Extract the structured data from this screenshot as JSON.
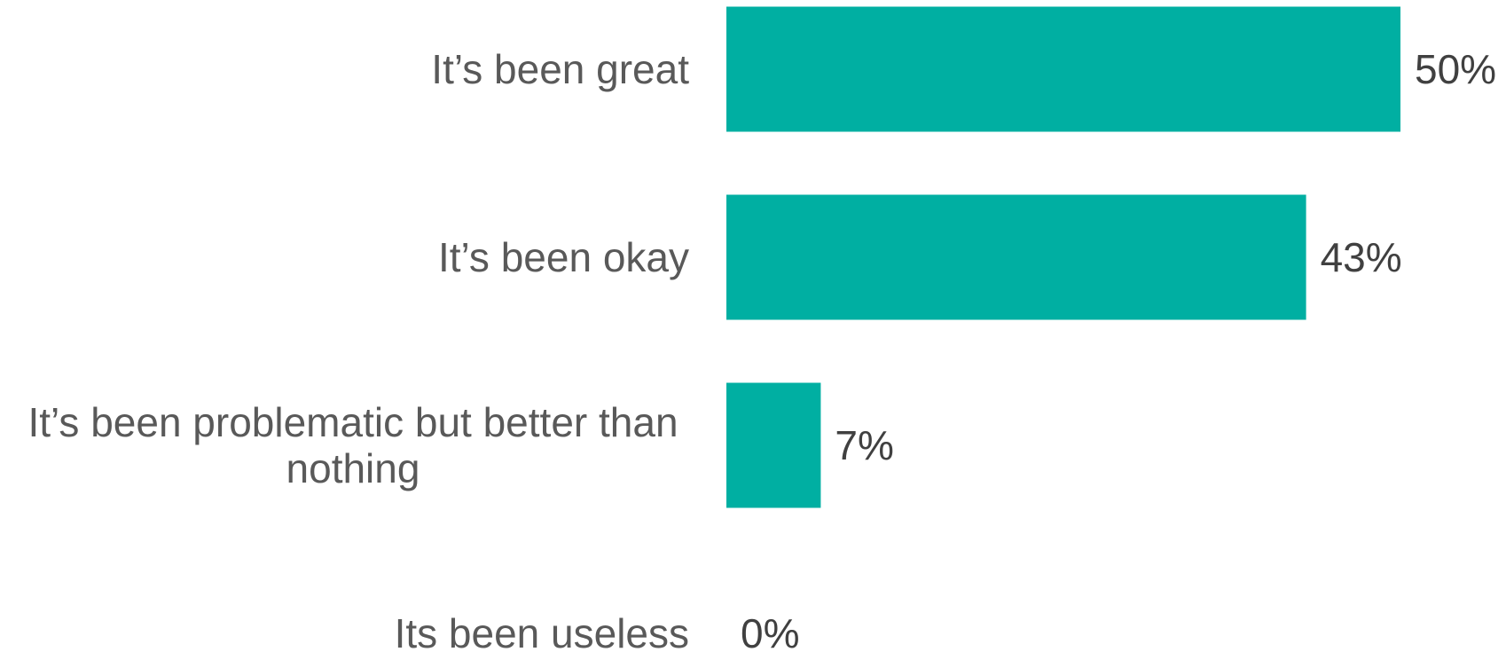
{
  "chart_data": {
    "type": "bar",
    "orientation": "horizontal",
    "categories": [
      "It’s been great",
      "It’s been okay",
      "It’s been problematic but better than nothing",
      "Its been useless"
    ],
    "category_lines": [
      [
        "It’s been great"
      ],
      [
        "It’s been okay"
      ],
      [
        "It’s been problematic but better than",
        "nothing"
      ],
      [
        "Its been useless"
      ]
    ],
    "values": [
      50,
      43,
      7,
      0
    ],
    "value_labels": [
      "50%",
      "43%",
      "7%",
      "0%"
    ],
    "unit": "%",
    "bar_color": "#00AFA2",
    "category_label_color": "#595959",
    "value_label_color": "#404040",
    "title": "",
    "xlabel": "",
    "ylabel": "",
    "xlim": [
      0,
      50
    ],
    "grid": false,
    "legend": "none"
  }
}
